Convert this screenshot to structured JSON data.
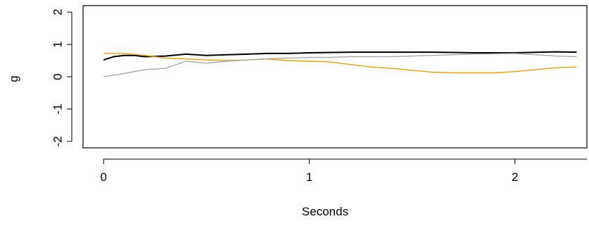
{
  "chart_data": {
    "type": "line",
    "title": "",
    "xlabel": "Seconds",
    "ylabel": "g",
    "xlim": [
      -0.1,
      2.35
    ],
    "ylim": [
      -2.2,
      2.2
    ],
    "x_ticks": [
      0,
      1,
      2
    ],
    "x_tick_labels": [
      "0",
      "1",
      "2"
    ],
    "y_ticks": [
      -2,
      -1,
      0,
      1,
      2
    ],
    "y_tick_labels": [
      "-2",
      "-1",
      "0",
      "1",
      "2"
    ],
    "grid": false,
    "legend": "none",
    "series": [
      {
        "color": "#000000",
        "points": [
          [
            0.0,
            0.52
          ],
          [
            0.05,
            0.62
          ],
          [
            0.1,
            0.66
          ],
          [
            0.15,
            0.66
          ],
          [
            0.2,
            0.62
          ],
          [
            0.3,
            0.64
          ],
          [
            0.4,
            0.7
          ],
          [
            0.5,
            0.66
          ],
          [
            0.6,
            0.68
          ],
          [
            0.7,
            0.7
          ],
          [
            0.8,
            0.72
          ],
          [
            0.9,
            0.72
          ],
          [
            1.0,
            0.74
          ],
          [
            1.2,
            0.76
          ],
          [
            1.4,
            0.76
          ],
          [
            1.6,
            0.76
          ],
          [
            1.8,
            0.74
          ],
          [
            2.0,
            0.74
          ],
          [
            2.2,
            0.77
          ],
          [
            2.3,
            0.76
          ]
        ]
      },
      {
        "color": "#e8a200",
        "points": [
          [
            0.0,
            0.72
          ],
          [
            0.1,
            0.72
          ],
          [
            0.2,
            0.66
          ],
          [
            0.3,
            0.58
          ],
          [
            0.4,
            0.55
          ],
          [
            0.5,
            0.52
          ],
          [
            0.6,
            0.5
          ],
          [
            0.7,
            0.52
          ],
          [
            0.8,
            0.55
          ],
          [
            0.9,
            0.5
          ],
          [
            1.0,
            0.48
          ],
          [
            1.1,
            0.46
          ],
          [
            1.2,
            0.38
          ],
          [
            1.3,
            0.3
          ],
          [
            1.4,
            0.26
          ],
          [
            1.5,
            0.2
          ],
          [
            1.6,
            0.14
          ],
          [
            1.7,
            0.12
          ],
          [
            1.8,
            0.12
          ],
          [
            1.9,
            0.12
          ],
          [
            2.0,
            0.16
          ],
          [
            2.1,
            0.22
          ],
          [
            2.2,
            0.28
          ],
          [
            2.3,
            0.3
          ]
        ]
      },
      {
        "color": "#aaaaaa",
        "points": [
          [
            0.0,
            0.0
          ],
          [
            0.1,
            0.1
          ],
          [
            0.2,
            0.22
          ],
          [
            0.3,
            0.26
          ],
          [
            0.4,
            0.48
          ],
          [
            0.5,
            0.42
          ],
          [
            0.6,
            0.48
          ],
          [
            0.7,
            0.52
          ],
          [
            0.8,
            0.56
          ],
          [
            0.9,
            0.58
          ],
          [
            1.0,
            0.6
          ],
          [
            1.1,
            0.6
          ],
          [
            1.2,
            0.62
          ],
          [
            1.4,
            0.62
          ],
          [
            1.6,
            0.66
          ],
          [
            1.8,
            0.7
          ],
          [
            2.0,
            0.72
          ],
          [
            2.2,
            0.64
          ],
          [
            2.3,
            0.62
          ]
        ]
      }
    ]
  }
}
